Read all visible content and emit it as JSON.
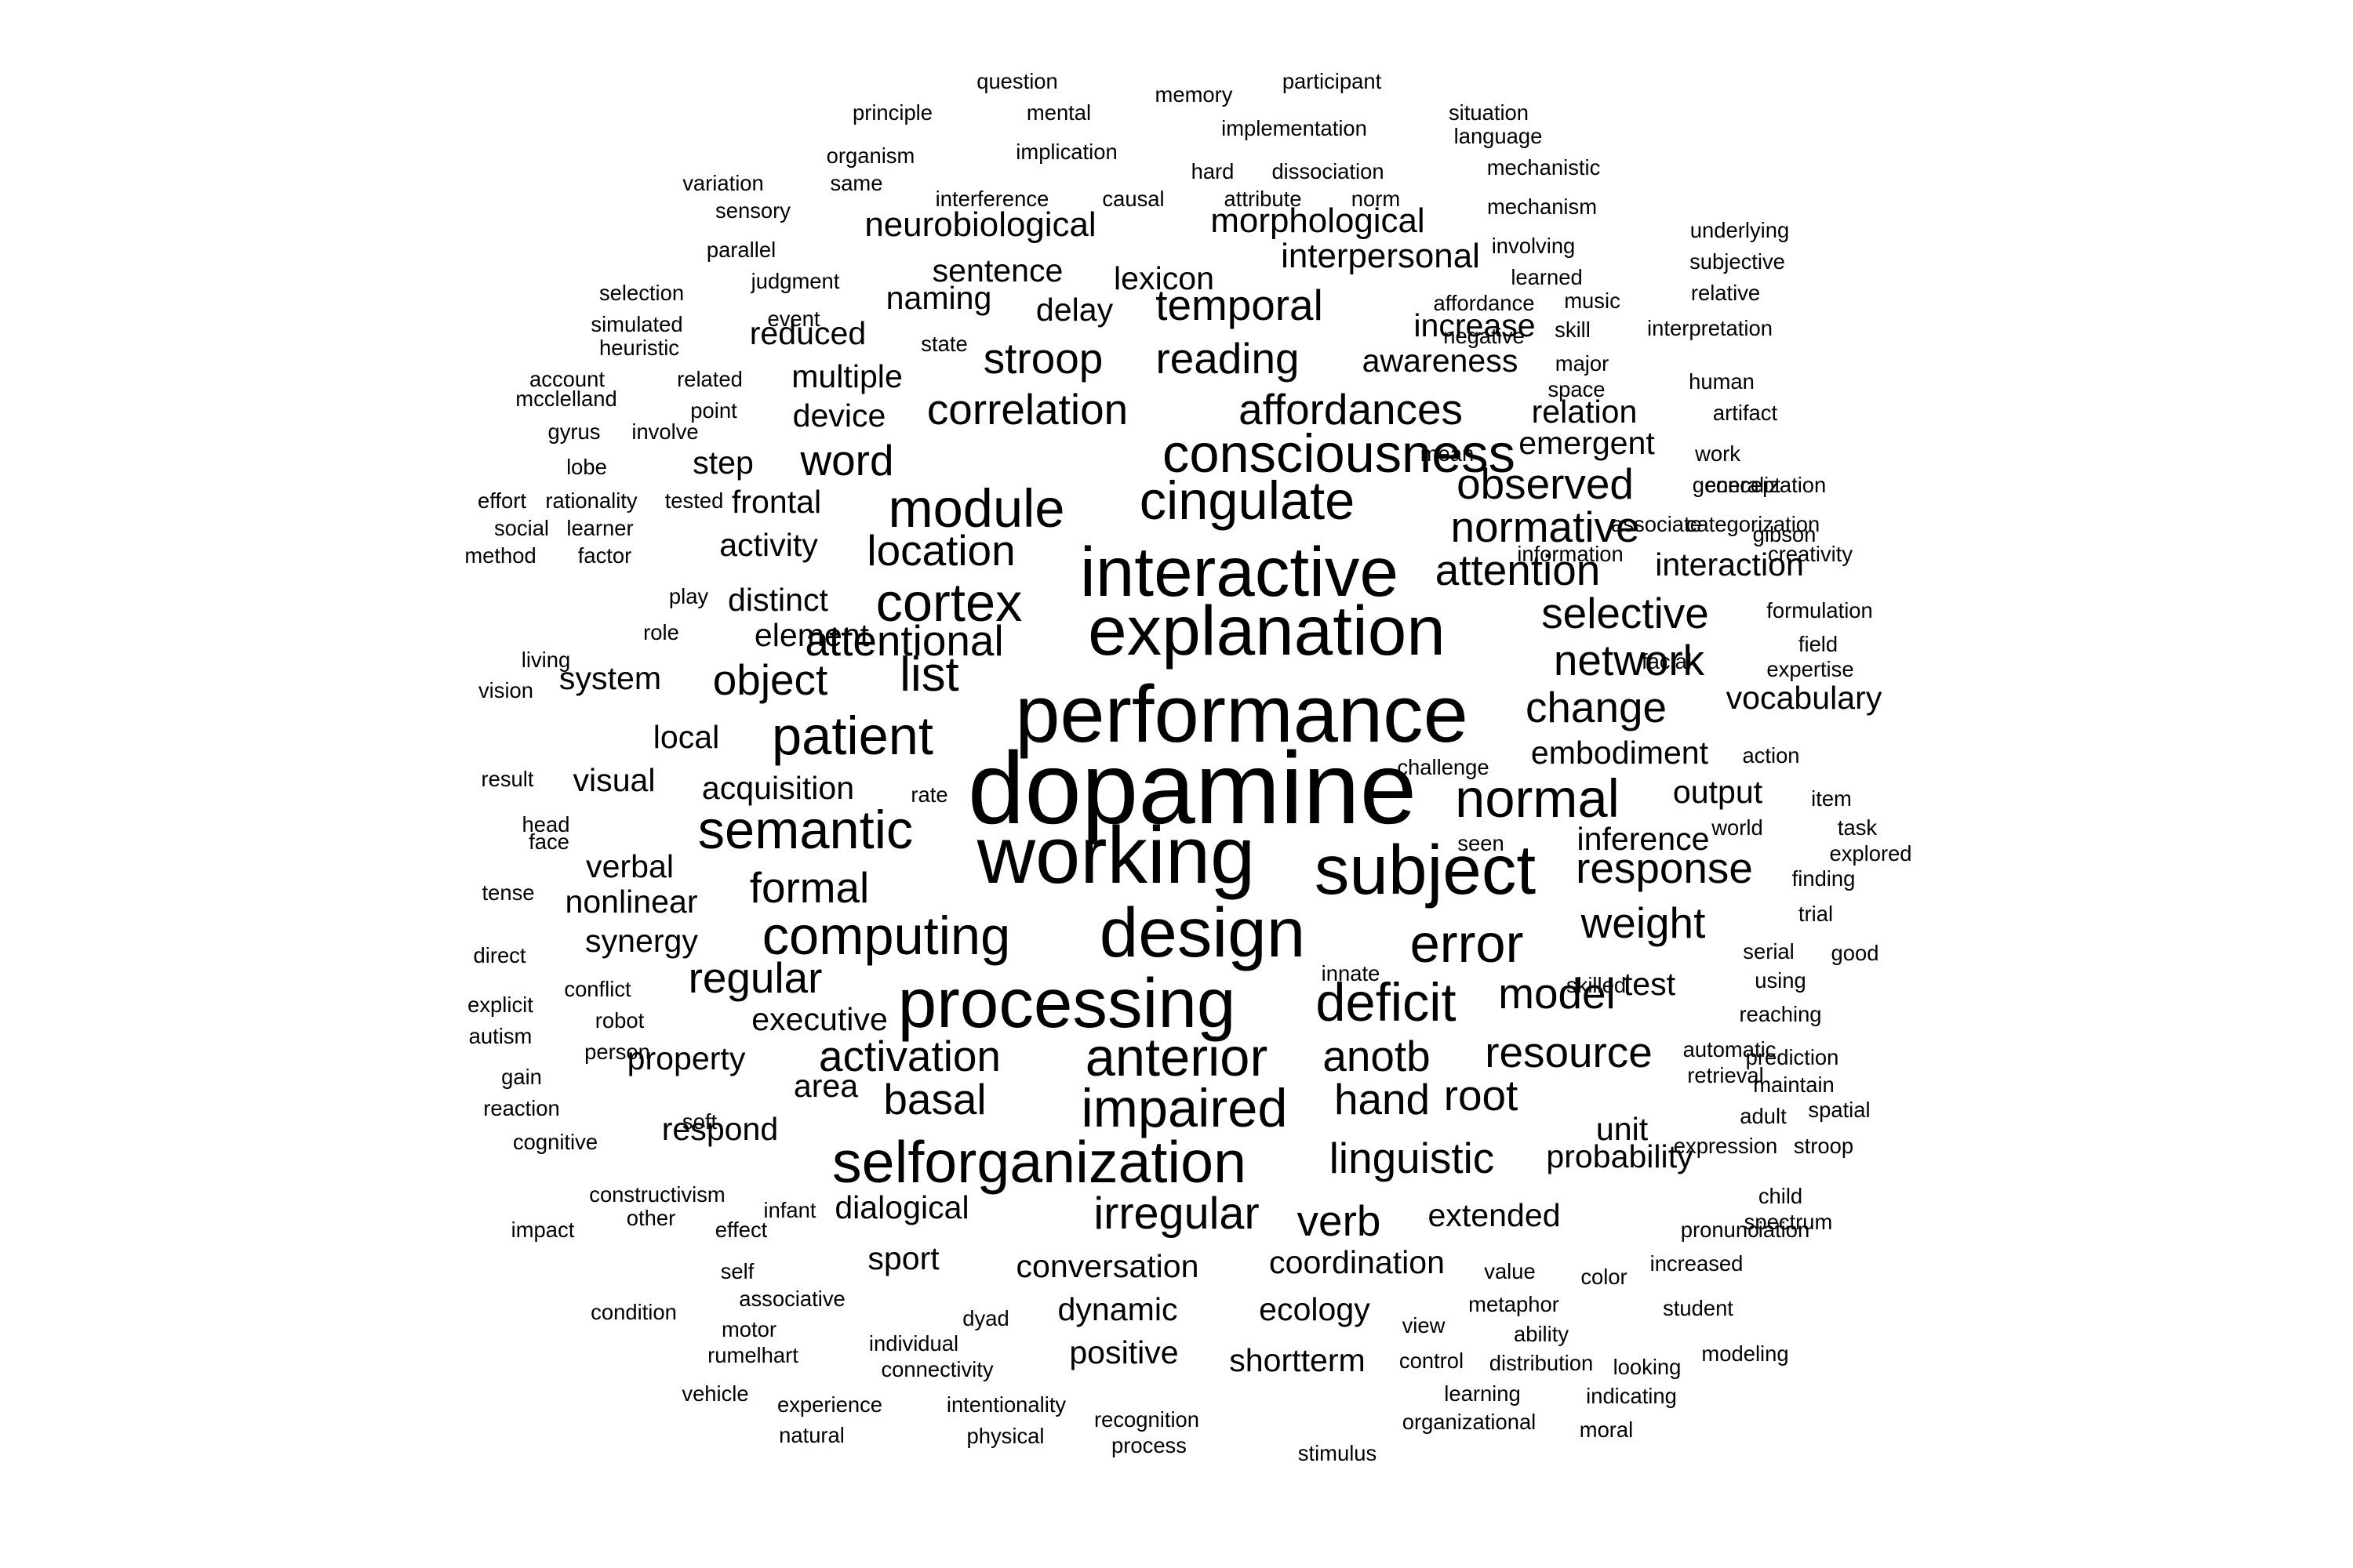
{
  "cloud": {
    "color": "#000000",
    "background": "#ffffff",
    "words": [
      {
        "text": "dopamine",
        "weight": 9.5
      },
      {
        "text": "performance",
        "weight": 7.5
      },
      {
        "text": "working",
        "weight": 7.5
      },
      {
        "text": "subject",
        "weight": 6.5
      },
      {
        "text": "interactive",
        "weight": 6.5
      },
      {
        "text": "explanation",
        "weight": 6.5
      },
      {
        "text": "design",
        "weight": 6.5
      },
      {
        "text": "processing",
        "weight": 6.5
      },
      {
        "text": "selforganization",
        "weight": 5.5
      },
      {
        "text": "consciousness",
        "weight": 5.0
      },
      {
        "text": "cingulate",
        "weight": 5.0
      },
      {
        "text": "module",
        "weight": 5.0
      },
      {
        "text": "cortex",
        "weight": 5.0
      },
      {
        "text": "semantic",
        "weight": 5.0
      },
      {
        "text": "computing",
        "weight": 5.0
      },
      {
        "text": "deficit",
        "weight": 5.0
      },
      {
        "text": "anterior",
        "weight": 5.0
      },
      {
        "text": "impaired",
        "weight": 5.0
      },
      {
        "text": "patient",
        "weight": 5.0
      },
      {
        "text": "error",
        "weight": 5.0
      },
      {
        "text": "normal",
        "weight": 5.0
      },
      {
        "text": "irregular",
        "weight": 4.2
      },
      {
        "text": "list",
        "weight": 4.5
      },
      {
        "text": "affordances",
        "weight": 4.0
      },
      {
        "text": "correlation",
        "weight": 4.0
      },
      {
        "text": "reading",
        "weight": 4.0
      },
      {
        "text": "stroop",
        "weight": 4.0
      },
      {
        "text": "temporal",
        "weight": 4.0
      },
      {
        "text": "word",
        "weight": 4.0
      },
      {
        "text": "location",
        "weight": 4.0
      },
      {
        "text": "attentional",
        "weight": 4.0
      },
      {
        "text": "object",
        "weight": 4.0
      },
      {
        "text": "observed",
        "weight": 4.0
      },
      {
        "text": "normative",
        "weight": 4.0
      },
      {
        "text": "attention",
        "weight": 4.0
      },
      {
        "text": "selective",
        "weight": 4.0
      },
      {
        "text": "network",
        "weight": 4.0
      },
      {
        "text": "change",
        "weight": 4.0
      },
      {
        "text": "response",
        "weight": 4.0
      },
      {
        "text": "weight",
        "weight": 4.0
      },
      {
        "text": "model",
        "weight": 4.0
      },
      {
        "text": "formal",
        "weight": 4.0
      },
      {
        "text": "regular",
        "weight": 4.0
      },
      {
        "text": "activation",
        "weight": 4.0
      },
      {
        "text": "basal",
        "weight": 4.0
      },
      {
        "text": "hand",
        "weight": 4.0
      },
      {
        "text": "anotb",
        "weight": 4.0
      },
      {
        "text": "root",
        "weight": 4.0
      },
      {
        "text": "resource",
        "weight": 4.0
      },
      {
        "text": "linguistic",
        "weight": 4.0
      },
      {
        "text": "verb",
        "weight": 4.0
      },
      {
        "text": "neurobiological",
        "weight": 3.2
      },
      {
        "text": "morphological",
        "weight": 3.2
      },
      {
        "text": "interpersonal",
        "weight": 3.2
      },
      {
        "text": "sentence",
        "weight": 3.0
      },
      {
        "text": "lexicon",
        "weight": 3.0
      },
      {
        "text": "naming",
        "weight": 3.0
      },
      {
        "text": "delay",
        "weight": 3.0
      },
      {
        "text": "reduced",
        "weight": 3.0
      },
      {
        "text": "increase",
        "weight": 3.0
      },
      {
        "text": "awareness",
        "weight": 3.0
      },
      {
        "text": "multiple",
        "weight": 3.0
      },
      {
        "text": "device",
        "weight": 3.0
      },
      {
        "text": "relation",
        "weight": 3.0
      },
      {
        "text": "emergent",
        "weight": 3.0
      },
      {
        "text": "step",
        "weight": 3.0
      },
      {
        "text": "frontal",
        "weight": 3.0
      },
      {
        "text": "activity",
        "weight": 3.0
      },
      {
        "text": "distinct",
        "weight": 3.0
      },
      {
        "text": "element",
        "weight": 3.0
      },
      {
        "text": "system",
        "weight": 3.0
      },
      {
        "text": "interaction",
        "weight": 3.0
      },
      {
        "text": "vocabulary",
        "weight": 3.0
      },
      {
        "text": "embodiment",
        "weight": 3.0
      },
      {
        "text": "output",
        "weight": 3.0
      },
      {
        "text": "inference",
        "weight": 3.0
      },
      {
        "text": "local",
        "weight": 3.0
      },
      {
        "text": "visual",
        "weight": 3.0
      },
      {
        "text": "acquisition",
        "weight": 3.0
      },
      {
        "text": "verbal",
        "weight": 3.0
      },
      {
        "text": "nonlinear",
        "weight": 3.0
      },
      {
        "text": "synergy",
        "weight": 3.0
      },
      {
        "text": "test",
        "weight": 3.0
      },
      {
        "text": "executive",
        "weight": 3.0
      },
      {
        "text": "property",
        "weight": 3.0
      },
      {
        "text": "area",
        "weight": 3.0
      },
      {
        "text": "respond",
        "weight": 3.0
      },
      {
        "text": "unit",
        "weight": 3.0
      },
      {
        "text": "probability",
        "weight": 3.0
      },
      {
        "text": "dialogical",
        "weight": 3.0
      },
      {
        "text": "extended",
        "weight": 3.0
      },
      {
        "text": "sport",
        "weight": 3.0
      },
      {
        "text": "conversation",
        "weight": 3.0
      },
      {
        "text": "coordination",
        "weight": 3.0
      },
      {
        "text": "dynamic",
        "weight": 3.0
      },
      {
        "text": "ecology",
        "weight": 3.0
      },
      {
        "text": "positive",
        "weight": 3.0
      },
      {
        "text": "shortterm",
        "weight": 3.0
      },
      {
        "text": "question",
        "weight": 2.0
      },
      {
        "text": "memory",
        "weight": 2.0
      },
      {
        "text": "participant",
        "weight": 2.0
      },
      {
        "text": "principle",
        "weight": 2.0
      },
      {
        "text": "mental",
        "weight": 2.0
      },
      {
        "text": "implementation",
        "weight": 2.0
      },
      {
        "text": "situation",
        "weight": 2.0
      },
      {
        "text": "language",
        "weight": 2.0
      },
      {
        "text": "organism",
        "weight": 2.0
      },
      {
        "text": "implication",
        "weight": 2.0
      },
      {
        "text": "hard",
        "weight": 2.0
      },
      {
        "text": "dissociation",
        "weight": 2.0
      },
      {
        "text": "mechanistic",
        "weight": 2.0
      },
      {
        "text": "variation",
        "weight": 2.0
      },
      {
        "text": "same",
        "weight": 2.0
      },
      {
        "text": "interference",
        "weight": 2.0
      },
      {
        "text": "causal",
        "weight": 2.0
      },
      {
        "text": "attribute",
        "weight": 2.0
      },
      {
        "text": "norm",
        "weight": 2.0
      },
      {
        "text": "mechanism",
        "weight": 2.0
      },
      {
        "text": "sensory",
        "weight": 2.0
      },
      {
        "text": "underlying",
        "weight": 2.0
      },
      {
        "text": "parallel",
        "weight": 2.0
      },
      {
        "text": "involving",
        "weight": 2.0
      },
      {
        "text": "subjective",
        "weight": 2.0
      },
      {
        "text": "judgment",
        "weight": 2.0
      },
      {
        "text": "learned",
        "weight": 2.0
      },
      {
        "text": "selection",
        "weight": 2.0
      },
      {
        "text": "relative",
        "weight": 2.0
      },
      {
        "text": "affordance",
        "weight": 2.0
      },
      {
        "text": "music",
        "weight": 2.0
      },
      {
        "text": "simulated",
        "weight": 2.0
      },
      {
        "text": "event",
        "weight": 2.0
      },
      {
        "text": "interpretation",
        "weight": 2.0
      },
      {
        "text": "negative",
        "weight": 2.0
      },
      {
        "text": "skill",
        "weight": 2.0
      },
      {
        "text": "heuristic",
        "weight": 2.0
      },
      {
        "text": "state",
        "weight": 2.0
      },
      {
        "text": "major",
        "weight": 2.0
      },
      {
        "text": "account",
        "weight": 2.0
      },
      {
        "text": "related",
        "weight": 2.0
      },
      {
        "text": "space",
        "weight": 2.0
      },
      {
        "text": "human",
        "weight": 2.0
      },
      {
        "text": "mcclelland",
        "weight": 2.0
      },
      {
        "text": "point",
        "weight": 2.0
      },
      {
        "text": "artifact",
        "weight": 2.0
      },
      {
        "text": "gyrus",
        "weight": 2.0
      },
      {
        "text": "involve",
        "weight": 2.0
      },
      {
        "text": "mean",
        "weight": 2.0
      },
      {
        "text": "work",
        "weight": 2.0
      },
      {
        "text": "lobe",
        "weight": 2.0
      },
      {
        "text": "generalization",
        "weight": 2.0
      },
      {
        "text": "tested",
        "weight": 2.0
      },
      {
        "text": "concept",
        "weight": 2.0
      },
      {
        "text": "effort",
        "weight": 2.0
      },
      {
        "text": "rationality",
        "weight": 2.0
      },
      {
        "text": "social",
        "weight": 2.0
      },
      {
        "text": "associate",
        "weight": 2.0
      },
      {
        "text": "categorization",
        "weight": 2.0
      },
      {
        "text": "learner",
        "weight": 2.0
      },
      {
        "text": "gibson",
        "weight": 2.0
      },
      {
        "text": "method",
        "weight": 2.0
      },
      {
        "text": "factor",
        "weight": 2.0
      },
      {
        "text": "information",
        "weight": 2.0
      },
      {
        "text": "creativity",
        "weight": 2.0
      },
      {
        "text": "play",
        "weight": 2.0
      },
      {
        "text": "formulation",
        "weight": 2.0
      },
      {
        "text": "role",
        "weight": 2.0
      },
      {
        "text": "field",
        "weight": 2.0
      },
      {
        "text": "living",
        "weight": 2.0
      },
      {
        "text": "expertise",
        "weight": 2.0
      },
      {
        "text": "facial",
        "weight": 2.0
      },
      {
        "text": "vision",
        "weight": 2.0
      },
      {
        "text": "challenge",
        "weight": 2.0
      },
      {
        "text": "action",
        "weight": 2.0
      },
      {
        "text": "result",
        "weight": 2.0
      },
      {
        "text": "rate",
        "weight": 2.0
      },
      {
        "text": "item",
        "weight": 2.0
      },
      {
        "text": "head",
        "weight": 2.0
      },
      {
        "text": "world",
        "weight": 2.0
      },
      {
        "text": "task",
        "weight": 2.0
      },
      {
        "text": "face",
        "weight": 2.0
      },
      {
        "text": "seen",
        "weight": 2.0
      },
      {
        "text": "explored",
        "weight": 2.0
      },
      {
        "text": "tense",
        "weight": 2.0
      },
      {
        "text": "finding",
        "weight": 2.0
      },
      {
        "text": "trial",
        "weight": 2.0
      },
      {
        "text": "direct",
        "weight": 2.0
      },
      {
        "text": "innate",
        "weight": 2.0
      },
      {
        "text": "serial",
        "weight": 2.0
      },
      {
        "text": "good",
        "weight": 2.0
      },
      {
        "text": "conflict",
        "weight": 2.0
      },
      {
        "text": "skilled",
        "weight": 2.0
      },
      {
        "text": "using",
        "weight": 2.0
      },
      {
        "text": "explicit",
        "weight": 2.0
      },
      {
        "text": "robot",
        "weight": 2.0
      },
      {
        "text": "reaching",
        "weight": 2.0
      },
      {
        "text": "autism",
        "weight": 2.0
      },
      {
        "text": "person",
        "weight": 2.0
      },
      {
        "text": "automatic",
        "weight": 2.0
      },
      {
        "text": "prediction",
        "weight": 2.0
      },
      {
        "text": "gain",
        "weight": 2.0
      },
      {
        "text": "retrieval",
        "weight": 2.0
      },
      {
        "text": "maintain",
        "weight": 2.0
      },
      {
        "text": "reaction",
        "weight": 2.0
      },
      {
        "text": "adult",
        "weight": 2.0
      },
      {
        "text": "soft",
        "weight": 2.0
      },
      {
        "text": "spatial",
        "weight": 2.0
      },
      {
        "text": "cognitive",
        "weight": 2.0
      },
      {
        "text": "expression",
        "weight": 2.0
      },
      {
        "text": "stroop",
        "weight": 2.0
      },
      {
        "text": "constructivism",
        "weight": 2.0
      },
      {
        "text": "child",
        "weight": 2.0
      },
      {
        "text": "infant",
        "weight": 2.0
      },
      {
        "text": "other",
        "weight": 2.0
      },
      {
        "text": "impact",
        "weight": 2.0
      },
      {
        "text": "effect",
        "weight": 2.0
      },
      {
        "text": "pronunciation",
        "weight": 2.0
      },
      {
        "text": "spectrum",
        "weight": 2.0
      },
      {
        "text": "self",
        "weight": 2.0
      },
      {
        "text": "value",
        "weight": 2.0
      },
      {
        "text": "color",
        "weight": 2.0
      },
      {
        "text": "increased",
        "weight": 2.0
      },
      {
        "text": "associative",
        "weight": 2.0
      },
      {
        "text": "metaphor",
        "weight": 2.0
      },
      {
        "text": "student",
        "weight": 2.0
      },
      {
        "text": "condition",
        "weight": 2.0
      },
      {
        "text": "dyad",
        "weight": 2.0
      },
      {
        "text": "motor",
        "weight": 2.0
      },
      {
        "text": "view",
        "weight": 2.0
      },
      {
        "text": "ability",
        "weight": 2.0
      },
      {
        "text": "individual",
        "weight": 2.0
      },
      {
        "text": "rumelhart",
        "weight": 2.0
      },
      {
        "text": "modeling",
        "weight": 2.0
      },
      {
        "text": "connectivity",
        "weight": 2.0
      },
      {
        "text": "control",
        "weight": 2.0
      },
      {
        "text": "distribution",
        "weight": 2.0
      },
      {
        "text": "looking",
        "weight": 2.0
      },
      {
        "text": "vehicle",
        "weight": 2.0
      },
      {
        "text": "learning",
        "weight": 2.0
      },
      {
        "text": "indicating",
        "weight": 2.0
      },
      {
        "text": "experience",
        "weight": 2.0
      },
      {
        "text": "intentionality",
        "weight": 2.0
      },
      {
        "text": "recognition",
        "weight": 2.0
      },
      {
        "text": "organizational",
        "weight": 2.0
      },
      {
        "text": "moral",
        "weight": 2.0
      },
      {
        "text": "natural",
        "weight": 2.0
      },
      {
        "text": "physical",
        "weight": 2.0
      },
      {
        "text": "process",
        "weight": 2.0
      },
      {
        "text": "stimulus",
        "weight": 2.0
      }
    ]
  }
}
